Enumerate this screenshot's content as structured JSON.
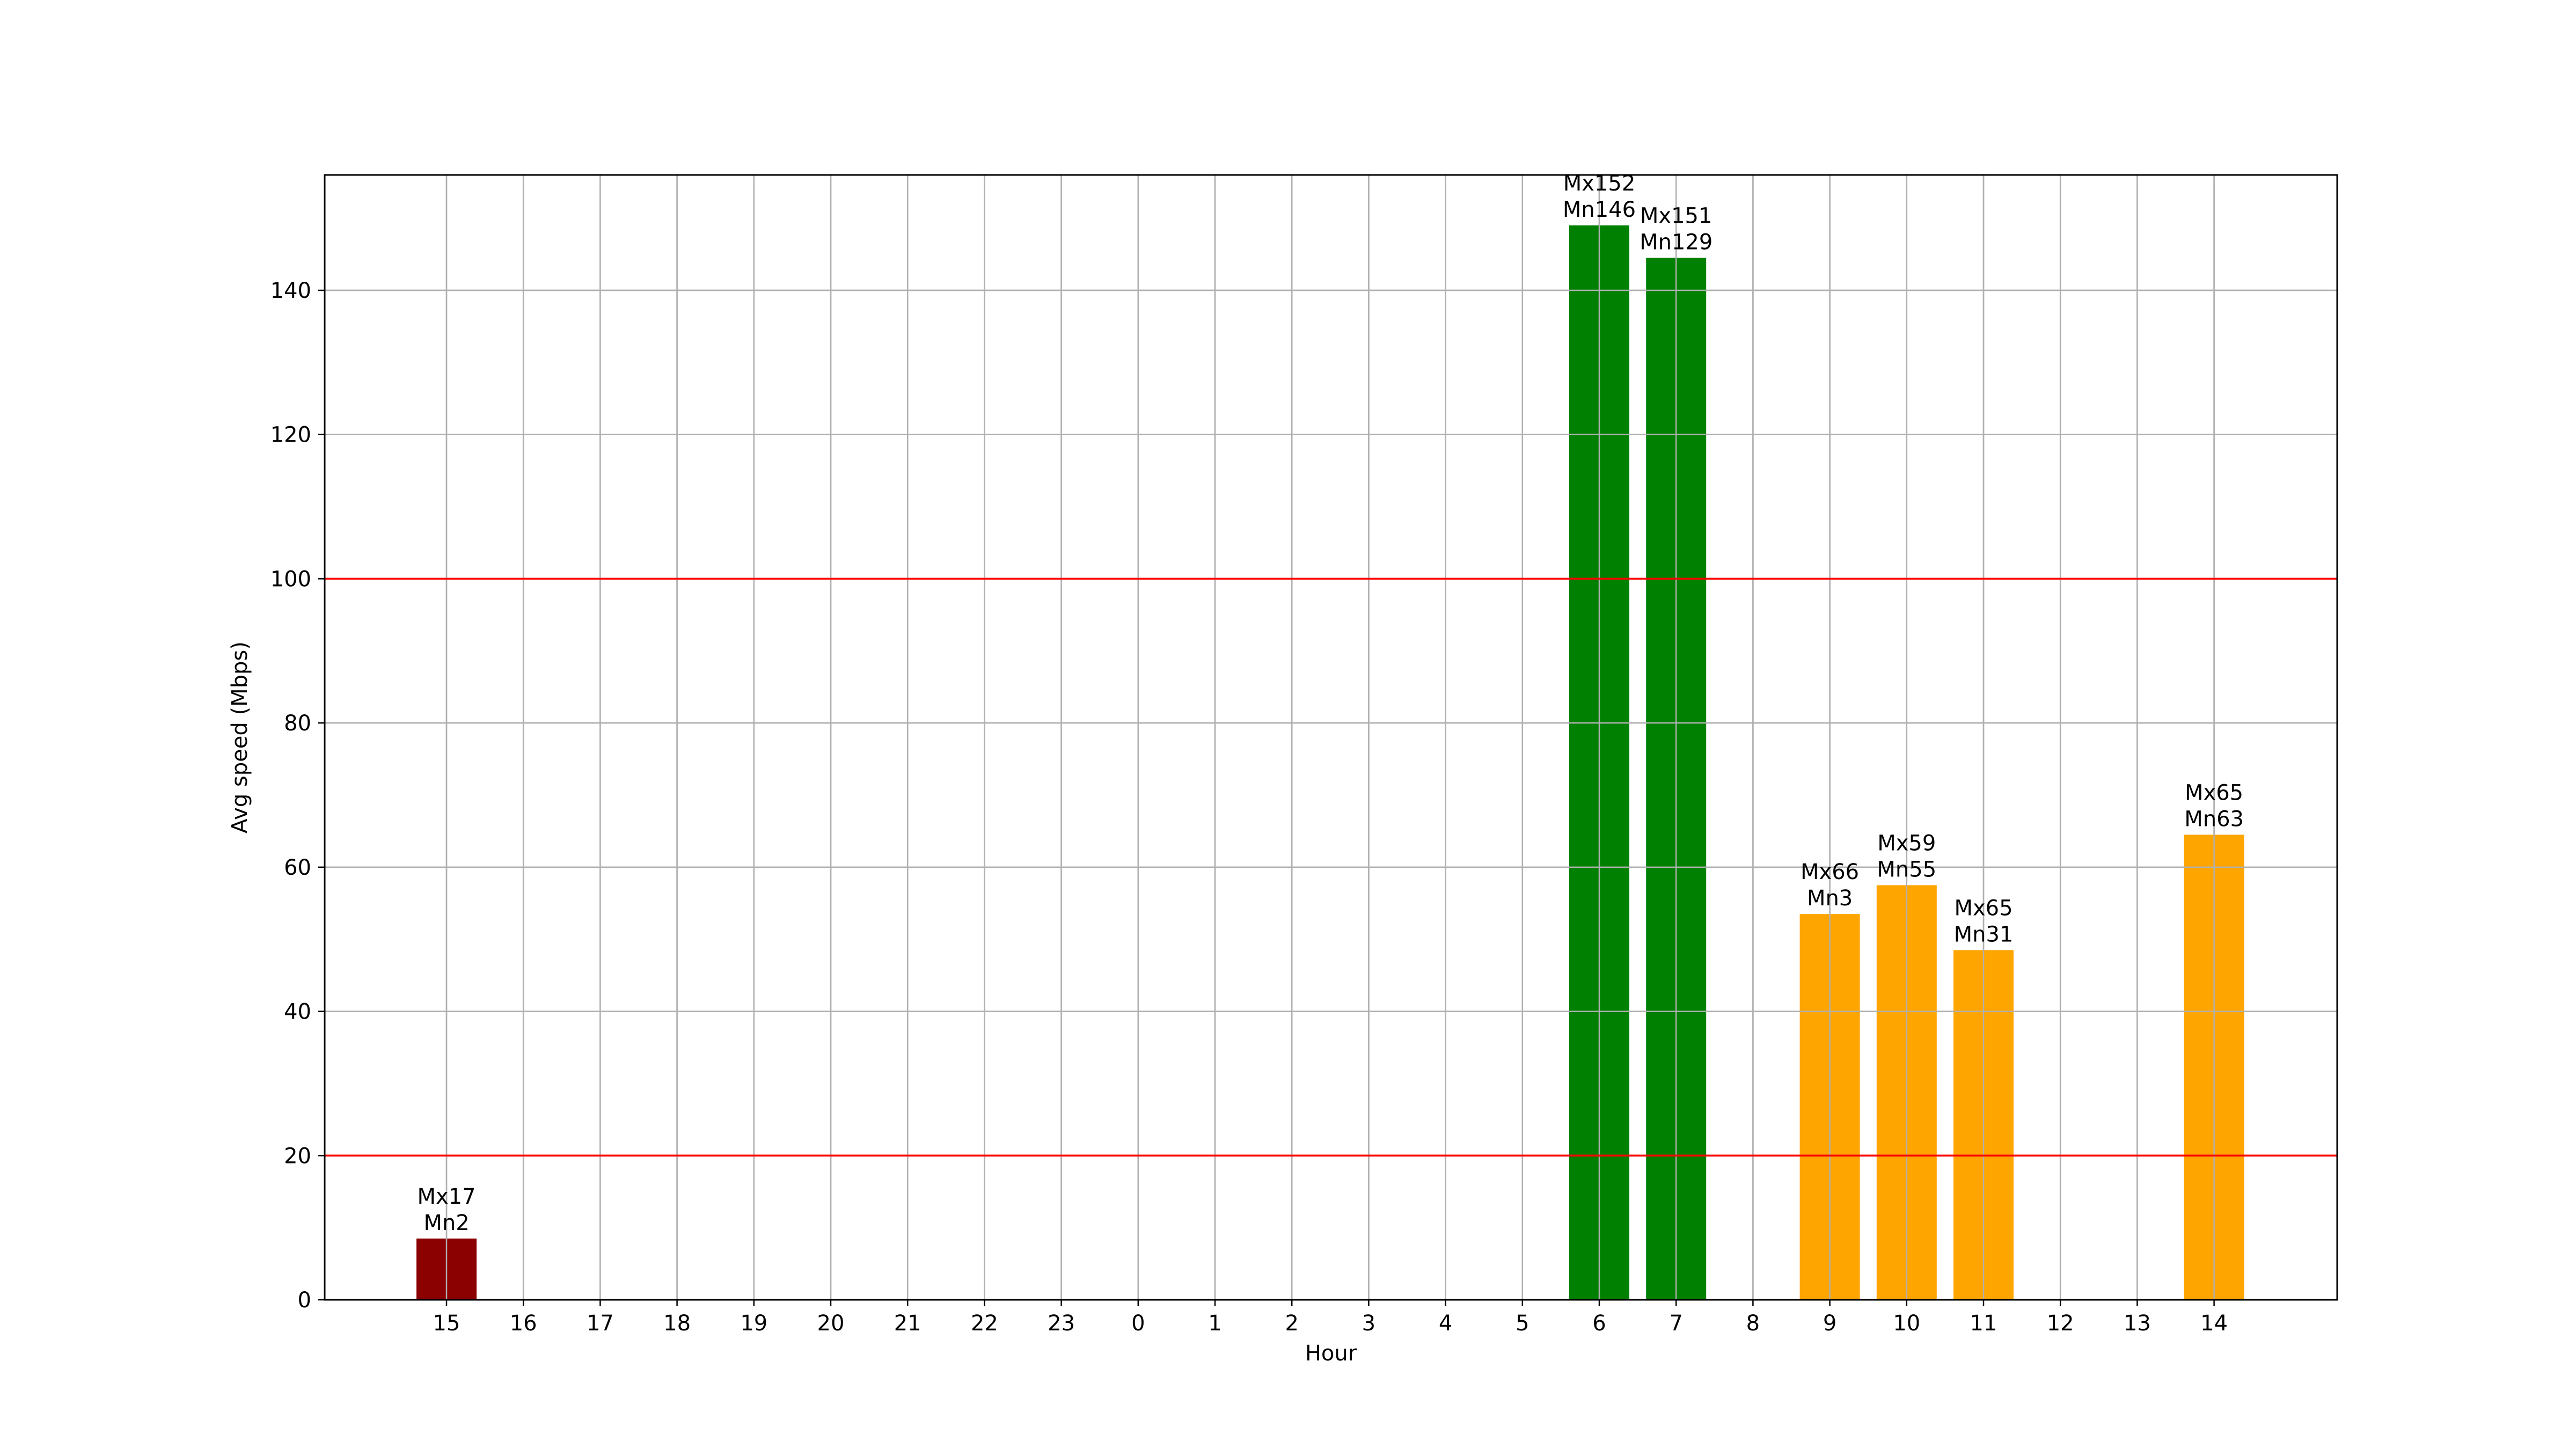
{
  "chart_data": {
    "type": "bar",
    "title": "",
    "xlabel": "Hour",
    "ylabel": "Avg speed (Mbps)",
    "ylim": [
      0,
      156
    ],
    "yticks": [
      0,
      20,
      40,
      60,
      80,
      100,
      120,
      140
    ],
    "grid": true,
    "categories": [
      "15",
      "16",
      "17",
      "18",
      "19",
      "20",
      "21",
      "22",
      "23",
      "0",
      "1",
      "2",
      "3",
      "4",
      "5",
      "6",
      "7",
      "8",
      "9",
      "10",
      "11",
      "12",
      "13",
      "14"
    ],
    "values": [
      8.5,
      null,
      null,
      null,
      null,
      null,
      null,
      null,
      null,
      null,
      null,
      null,
      null,
      null,
      null,
      149,
      144.5,
      null,
      53.5,
      57.5,
      48.5,
      null,
      null,
      64.5
    ],
    "bar_labels": [
      [
        "Mx17",
        "Mn2"
      ],
      null,
      null,
      null,
      null,
      null,
      null,
      null,
      null,
      null,
      null,
      null,
      null,
      null,
      null,
      [
        "Mx152",
        "Mn146"
      ],
      [
        "Mx151",
        "Mn129"
      ],
      null,
      [
        "Mx66",
        "Mn3"
      ],
      [
        "Mx59",
        "Mn55"
      ],
      [
        "Mx65",
        "Mn31"
      ],
      null,
      null,
      [
        "Mx65",
        "Mn63"
      ]
    ],
    "bar_colors": [
      "#8b0000",
      null,
      null,
      null,
      null,
      null,
      null,
      null,
      null,
      null,
      null,
      null,
      null,
      null,
      null,
      "#008000",
      "#008000",
      null,
      "#ffa500",
      "#ffa500",
      "#ffa500",
      null,
      null,
      "#ffa500"
    ],
    "reference_lines": [
      {
        "y": 100,
        "color": "#ff0000"
      },
      {
        "y": 20,
        "color": "#ff0000"
      }
    ],
    "colors": {
      "grid": "#b0b0b0",
      "axes": "#000000"
    }
  }
}
